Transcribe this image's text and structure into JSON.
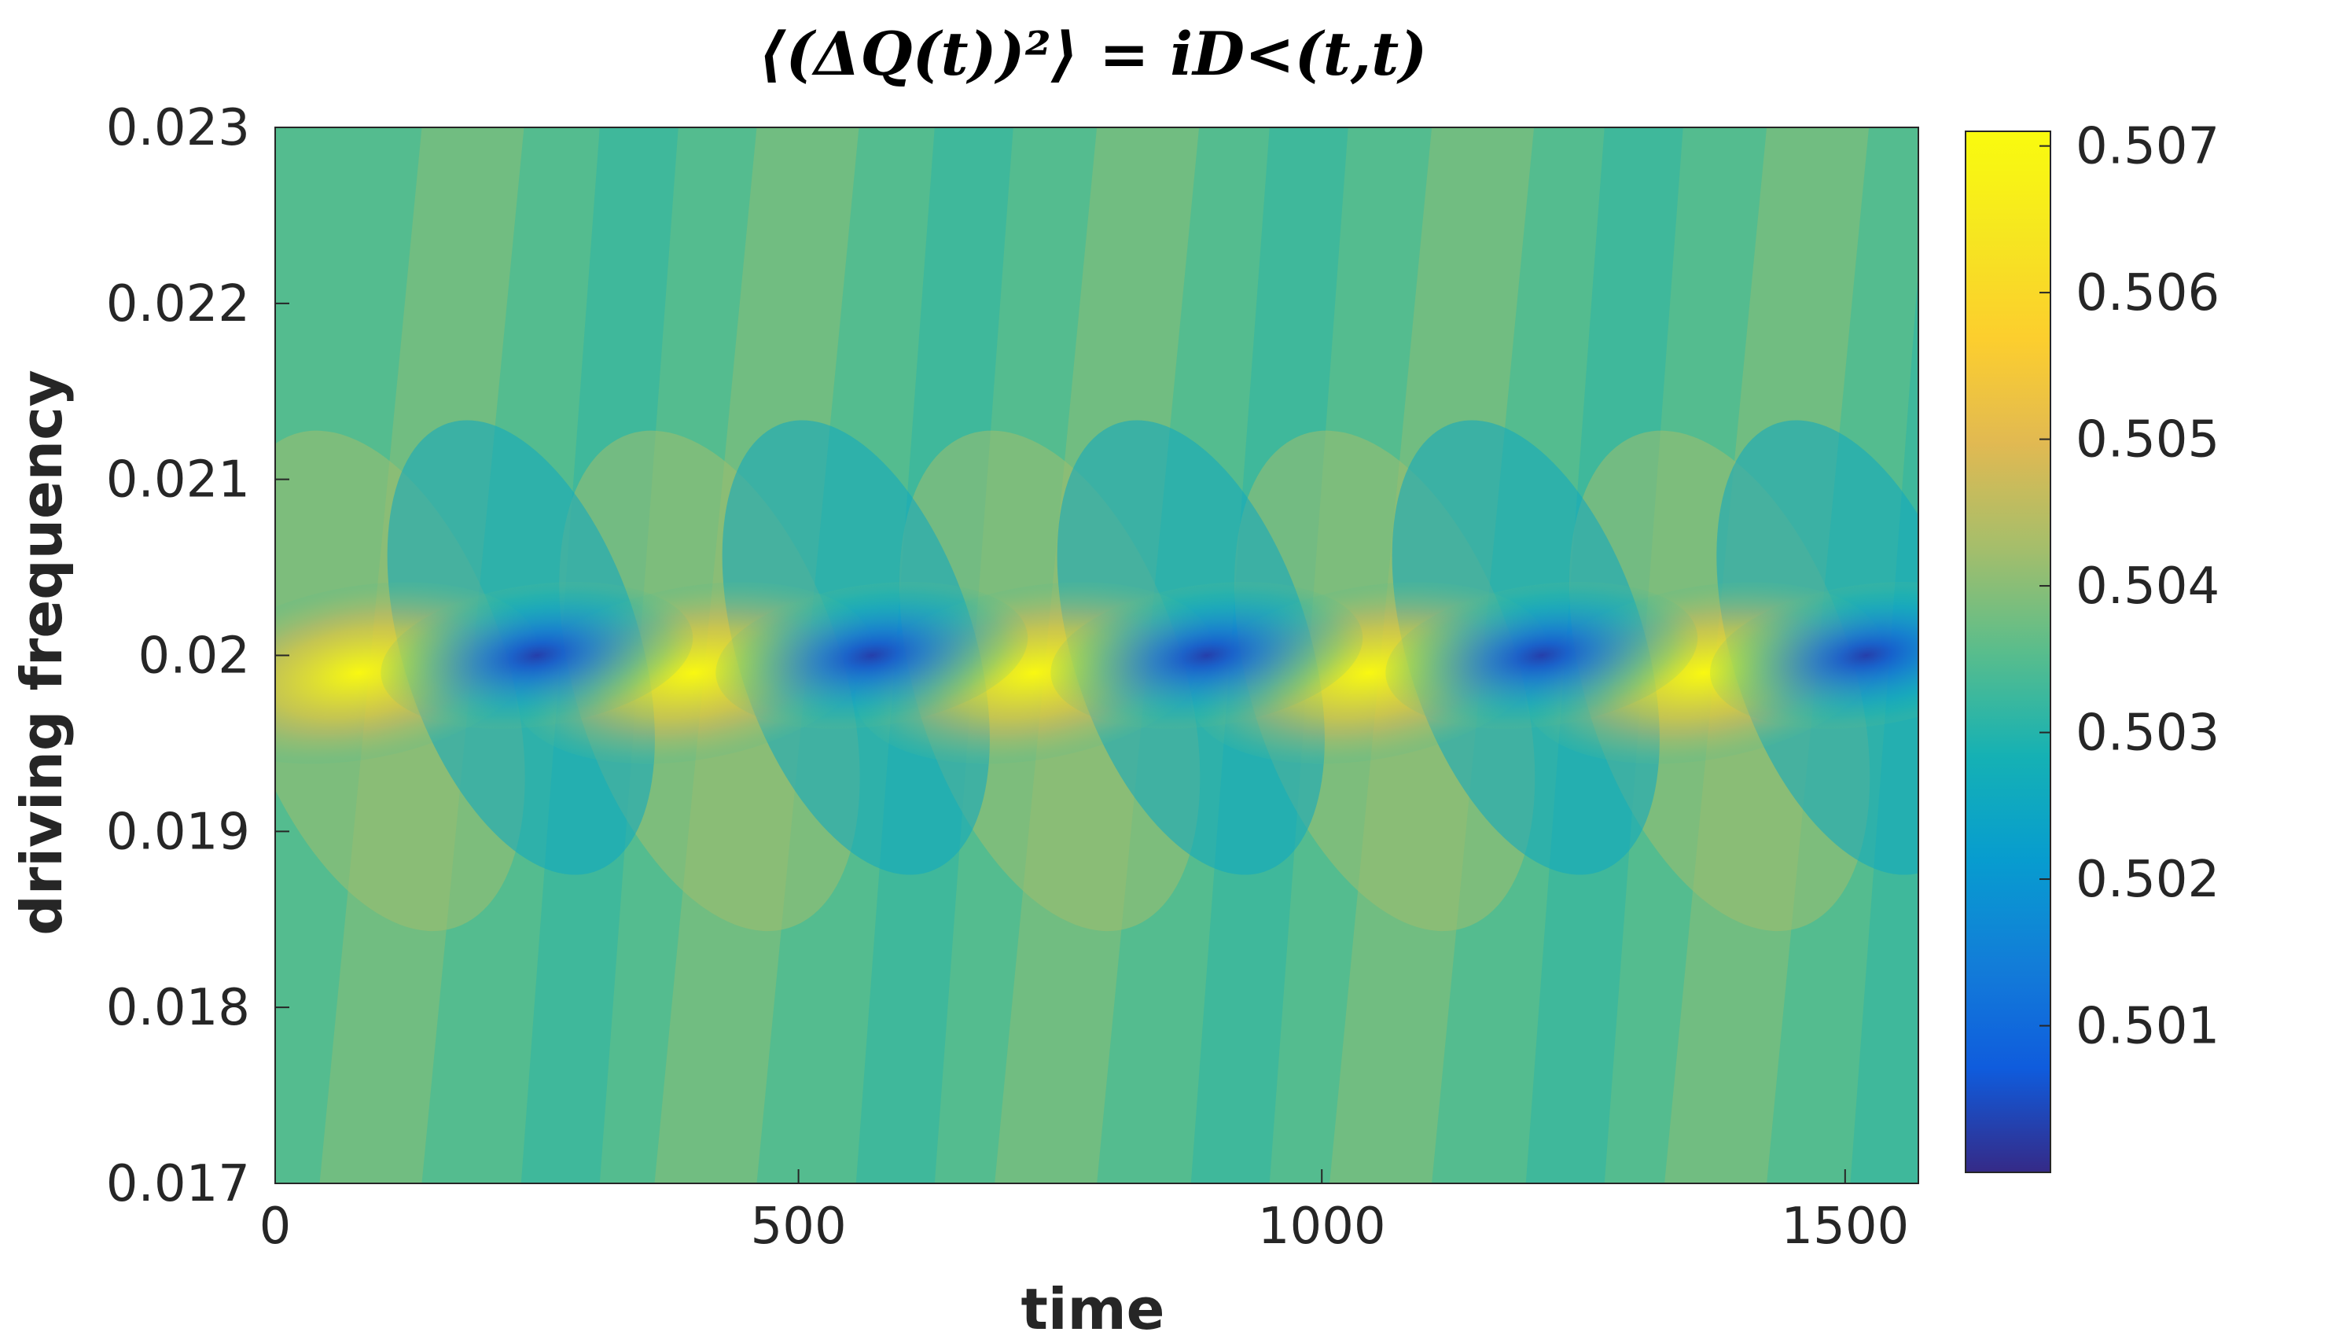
{
  "chart_data": {
    "type": "heatmap",
    "title": "⟨(ΔQ(t))²⟩ = iD<(t,t)",
    "xlabel": "time",
    "ylabel": "driving frequency",
    "xlim": [
      0,
      1570
    ],
    "ylim": [
      0.017,
      0.023
    ],
    "x_ticks": [
      0,
      500,
      1000,
      1500
    ],
    "x_tick_labels": [
      "0",
      "500",
      "1000",
      "1500"
    ],
    "y_ticks": [
      0.017,
      0.018,
      0.019,
      0.02,
      0.021,
      0.022,
      0.023
    ],
    "y_tick_labels": [
      "0.017",
      "0.018",
      "0.019",
      "0.02",
      "0.021",
      "0.022",
      "0.023"
    ],
    "colorbar": {
      "colormap": "parula",
      "clim": [
        0.5,
        0.5071
      ],
      "ticks": [
        0.501,
        0.502,
        0.503,
        0.504,
        0.505,
        0.506,
        0.507
      ],
      "tick_labels": [
        "0.501",
        "0.502",
        "0.503",
        "0.504",
        "0.505",
        "0.506",
        "0.507"
      ],
      "location": "right"
    },
    "background_value": 0.5035,
    "resonance_frequency": 0.01995,
    "maxima": [
      {
        "time": 80,
        "frequency": 0.0199,
        "value": 0.507
      },
      {
        "time": 400,
        "frequency": 0.0199,
        "value": 0.507
      },
      {
        "time": 725,
        "frequency": 0.0199,
        "value": 0.507
      },
      {
        "time": 1045,
        "frequency": 0.0199,
        "value": 0.507
      },
      {
        "time": 1365,
        "frequency": 0.0199,
        "value": 0.507
      }
    ],
    "minima": [
      {
        "time": 250,
        "frequency": 0.02,
        "value": 0.5003
      },
      {
        "time": 570,
        "frequency": 0.02,
        "value": 0.5003
      },
      {
        "time": 890,
        "frequency": 0.02,
        "value": 0.5003
      },
      {
        "time": 1210,
        "frequency": 0.02,
        "value": 0.5003
      },
      {
        "time": 1520,
        "frequency": 0.02,
        "value": 0.5003
      }
    ]
  }
}
